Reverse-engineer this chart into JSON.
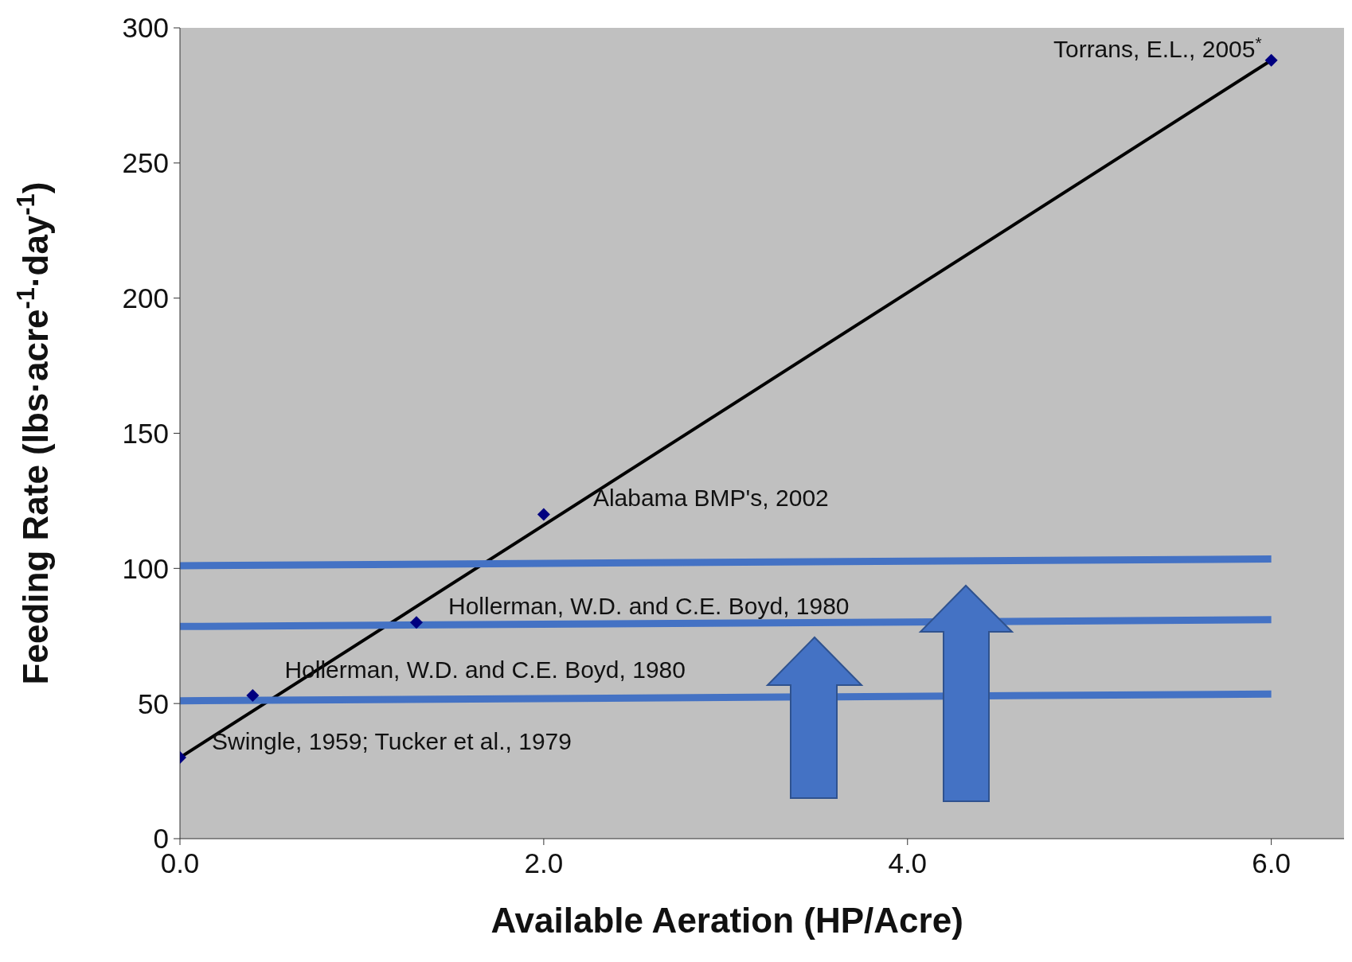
{
  "chart_data": {
    "type": "scatter",
    "xlabel": "Available Aeration (HP/Acre)",
    "ylabel": "Feeding Rate (lbs·acre$^{-1}$·day$^{-1}$)",
    "xlim": [
      0,
      6.4
    ],
    "xticks": [
      {
        "value": 0,
        "label": "0.0"
      },
      {
        "value": 2,
        "label": "2.0"
      },
      {
        "value": 4,
        "label": "4.0"
      },
      {
        "value": 6,
        "label": "6.0"
      }
    ],
    "ylim": [
      0,
      300
    ],
    "yticks": [
      0,
      50,
      100,
      150,
      200,
      250,
      300
    ],
    "grid": false,
    "legend": false,
    "series": [
      {
        "color": "#000080",
        "marker": "diamond",
        "x": [
          0,
          0.4,
          1.3,
          2.0,
          6.0
        ],
        "values": [
          30,
          53,
          80,
          120,
          288
        ]
      },
      {
        "type": "line",
        "color": "#000000",
        "marker": "none",
        "x": [
          0,
          6.0
        ],
        "values": [
          30,
          288
        ]
      },
      {
        "type": "line",
        "color": "#4472c4",
        "marker": "none",
        "x": [
          0,
          6.0
        ],
        "values": [
          101,
          103.5
        ]
      },
      {
        "type": "line",
        "color": "#4472c4",
        "marker": "none",
        "x": [
          0,
          6.0
        ],
        "values": [
          78.5,
          81
        ]
      },
      {
        "type": "line",
        "color": "#4472c4",
        "marker": "none",
        "x": [
          0,
          6.0
        ],
        "values": [
          51,
          53.5
        ]
      }
    ],
    "annotations": [
      {
        "text": "Swingle, 1959; Tucker et al., 1979",
        "x": 0,
        "y": 30
      },
      {
        "text": "Hollerman, W.D. and C.E. Boyd, 1980",
        "x": 0.4,
        "y": 53
      },
      {
        "text": "Hollerman, W.D. and C.E. Boyd, 1980",
        "x": 1.3,
        "y": 80
      },
      {
        "text": "Alabama BMP's, 2002",
        "x": 2.0,
        "y": 120
      },
      {
        "text": "Torrans, E.L., 2005$^{*}$",
        "x": 6.0,
        "y": 288
      }
    ]
  }
}
